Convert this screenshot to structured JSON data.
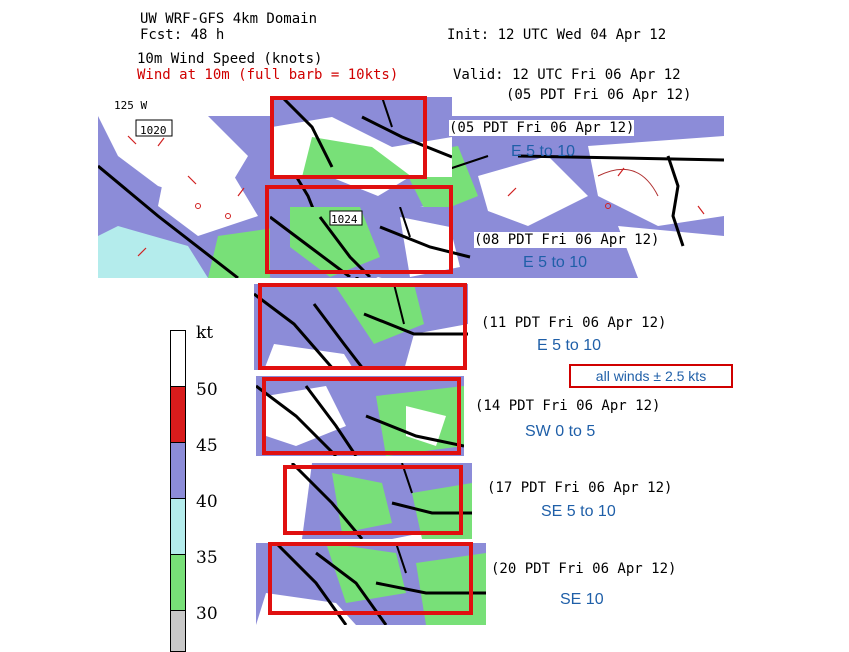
{
  "header": {
    "title": "UW WRF-GFS 4km Domain",
    "fcst": "Fcst:   48 h",
    "field": "10m Wind Speed (knots)",
    "barb_note": "Wind at 10m (full barb = 10kts)",
    "init": "Init: 12 UTC Wed 04 Apr 12",
    "valid": "Valid: 12 UTC Fri 06 Apr 12",
    "valid_local": "(05 PDT Fri 06 Apr 12)"
  },
  "map_labels": {
    "longitude": "125 W",
    "pressure_1": "1020",
    "pressure_2": "1024"
  },
  "panels": [
    {
      "time": "(05 PDT Fri 06 Apr 12)",
      "wind": "E 5 to 10"
    },
    {
      "time": "(08 PDT Fri 06 Apr 12)",
      "wind": "E 5 to 10"
    },
    {
      "time": "(11 PDT Fri 06 Apr 12)",
      "wind": "E 5 to 10"
    },
    {
      "time": "(14 PDT Fri 06 Apr 12)",
      "wind": "SW 0 to 5"
    },
    {
      "time": "(17 PDT Fri 06 Apr 12)",
      "wind": "SE 5 to 10"
    },
    {
      "time": "(20 PDT Fri 06 Apr 12)",
      "wind": "SE 10"
    }
  ],
  "note": "all winds ± 2.5 kts",
  "colorbar": {
    "unit": "kt",
    "ticks": [
      "50",
      "45",
      "40",
      "35",
      "30"
    ],
    "colors": [
      "#ffffff",
      "#d81c1c",
      "#8c8cd8",
      "#b0b0ec",
      "#b4ecec",
      "#78e078",
      "#c0f0c0",
      "#c8c8c8"
    ]
  }
}
